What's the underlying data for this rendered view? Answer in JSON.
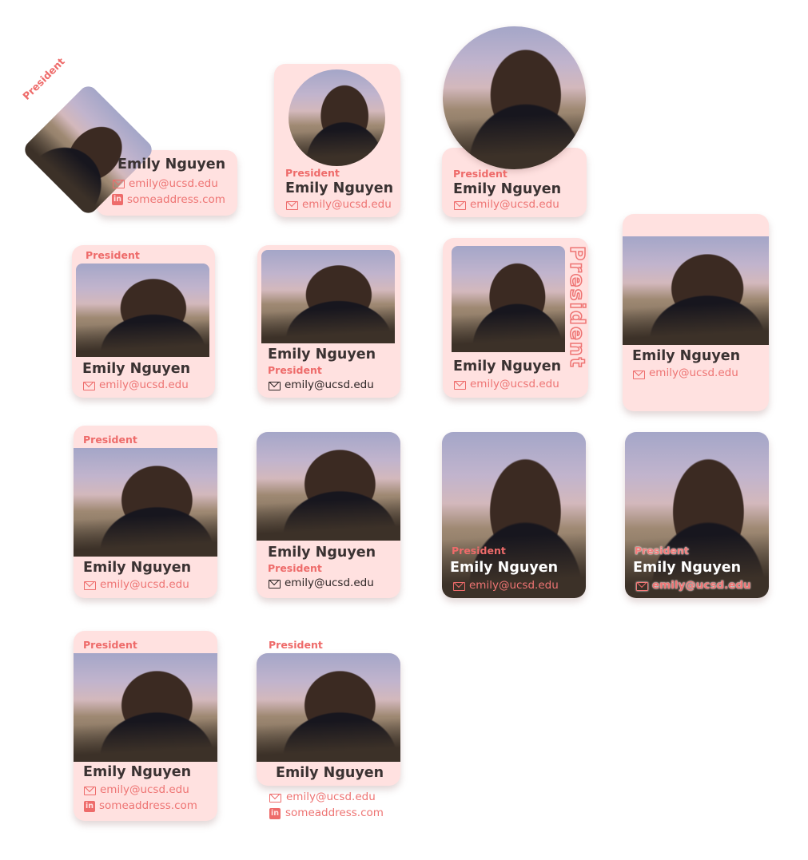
{
  "profile": {
    "name": "Emily Nguyen",
    "role": "President",
    "email": "emily@ucsd.edu",
    "website": "someaddress.com"
  },
  "icons": {
    "email": "mail-icon",
    "linkedin": "linkedin-icon",
    "linkedin_glyph": "in"
  },
  "colors": {
    "card_background": "#ffe1e0",
    "accent": "#ee6b6a",
    "text": "#3a3232"
  }
}
